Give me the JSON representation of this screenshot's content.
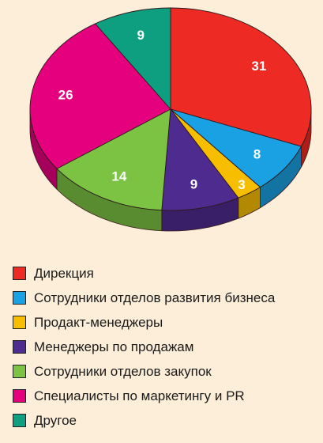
{
  "chart_data": {
    "type": "pie",
    "title": "",
    "slices": [
      {
        "label": "Дирекция",
        "value": 31,
        "color": "#ee2a24"
      },
      {
        "label": "Сотрудники отделов развития бизнеса",
        "value": 8,
        "color": "#1aa1e3"
      },
      {
        "label": "Продакт-менеджеры",
        "value": 3,
        "color": "#f7be00"
      },
      {
        "label": "Менеджеры по продажам",
        "value": 9,
        "color": "#4e2b8f"
      },
      {
        "label": "Сотрудники отделов закупок",
        "value": 14,
        "color": "#7cc243"
      },
      {
        "label": "Специалисты по маркетингу и PR",
        "value": 26,
        "color": "#e5007e"
      },
      {
        "label": "Другое",
        "value": 9,
        "color": "#0e9e80"
      }
    ],
    "legend_position": "bottom-left",
    "style": "3d-tilted"
  }
}
